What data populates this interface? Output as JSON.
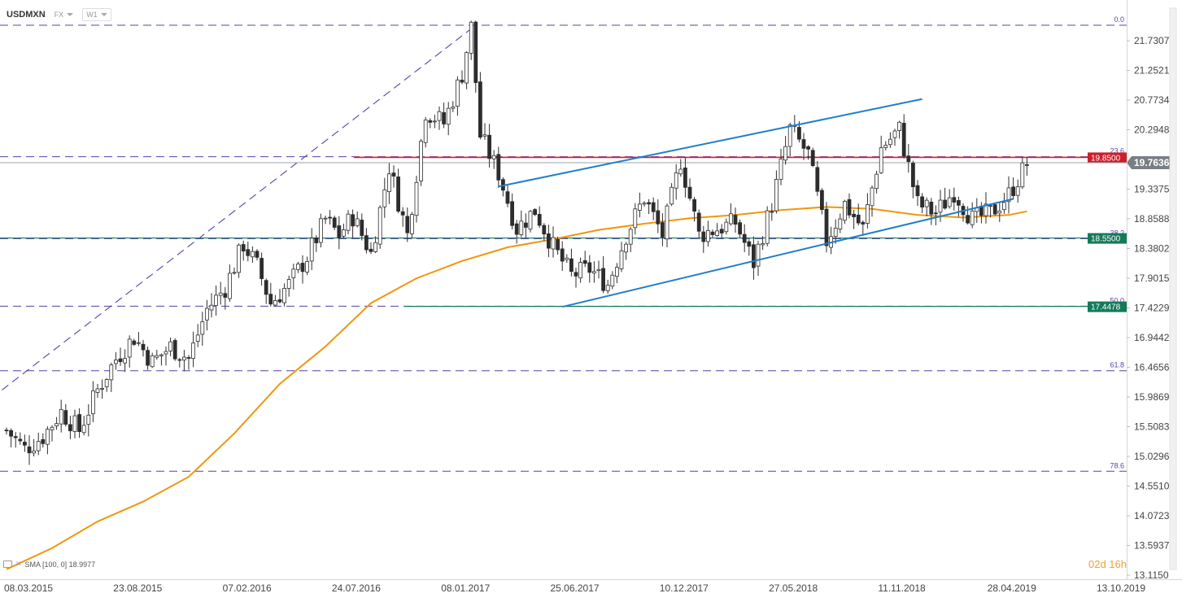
{
  "header": {
    "symbol": "USDMXN",
    "market": "FX",
    "interval": "W1"
  },
  "indicator": {
    "label": "SMA [100, 0] 18.9977"
  },
  "countdown": "02d 16h",
  "colors": {
    "up": "#ffffff",
    "down": "#2d2d2d",
    "sma": "#f0960c",
    "fib": "#5b3fa8",
    "trend": "#1f7ec9",
    "resistance": "#cc1f2b",
    "support": "#15795a",
    "price_tag": "#7a7f85"
  },
  "chart_data": {
    "type": "candlestick",
    "y_ticks": [
      "21.7307",
      "21.2521",
      "20.7734",
      "20.2948",
      "19.3375",
      "18.8588",
      "18.3802",
      "17.9015",
      "17.4229",
      "16.9442",
      "16.4656",
      "15.9869",
      "15.5083",
      "15.0296",
      "14.5510",
      "14.0723",
      "13.5937",
      "13.1150"
    ],
    "x_ticks": [
      "08.03.2015",
      "23.08.2015",
      "07.02.2016",
      "24.07.2016",
      "08.01.2017",
      "25.06.2017",
      "10.12.2017",
      "27.05.2018",
      "11.11.2018",
      "28.04.2019",
      "13.10.2019"
    ],
    "fib_levels": [
      {
        "label": "0.0",
        "value": 21.98
      },
      {
        "label": "23.6",
        "value": 19.86
      },
      {
        "label": "38.2",
        "value": 18.54
      },
      {
        "label": "50.0",
        "value": 17.45
      },
      {
        "label": "61.8",
        "value": 16.41
      },
      {
        "label": "78.6",
        "value": 14.79
      }
    ],
    "horizontal_levels": [
      {
        "name": "resistance",
        "label": "19.8500",
        "value": 19.85
      },
      {
        "name": "support",
        "label": "18.5500",
        "value": 18.55
      },
      {
        "name": "support2",
        "label": "17.4478",
        "value": 17.4478
      }
    ],
    "current_price": {
      "label": "19.7636",
      "value": 19.7636
    },
    "ylim": [
      13.115,
      22.0
    ],
    "weeks_span": [
      0,
      240
    ],
    "waypoints_close": [
      [
        0,
        15.45
      ],
      [
        4,
        15.15
      ],
      [
        8,
        15.35
      ],
      [
        12,
        15.75
      ],
      [
        16,
        15.45
      ],
      [
        20,
        16.1
      ],
      [
        24,
        16.6
      ],
      [
        28,
        16.95
      ],
      [
        32,
        16.55
      ],
      [
        36,
        16.8
      ],
      [
        40,
        16.6
      ],
      [
        44,
        17.4
      ],
      [
        48,
        17.75
      ],
      [
        52,
        18.45
      ],
      [
        55,
        18.1
      ],
      [
        58,
        17.5
      ],
      [
        62,
        17.8
      ],
      [
        66,
        18.25
      ],
      [
        70,
        18.85
      ],
      [
        73,
        18.6
      ],
      [
        76,
        18.9
      ],
      [
        80,
        18.3
      ],
      [
        84,
        19.7
      ],
      [
        88,
        18.6
      ],
      [
        92,
        20.6
      ],
      [
        96,
        20.4
      ],
      [
        100,
        21.2
      ],
      [
        102,
        21.95
      ],
      [
        104,
        20.2
      ],
      [
        108,
        19.6
      ],
      [
        112,
        18.7
      ],
      [
        116,
        19.0
      ],
      [
        120,
        18.4
      ],
      [
        124,
        17.95
      ],
      [
        128,
        18.05
      ],
      [
        132,
        17.8
      ],
      [
        136,
        18.6
      ],
      [
        140,
        19.2
      ],
      [
        144,
        18.6
      ],
      [
        148,
        19.8
      ],
      [
        152,
        18.6
      ],
      [
        156,
        18.7
      ],
      [
        160,
        18.8
      ],
      [
        164,
        18.15
      ],
      [
        168,
        19.1
      ],
      [
        172,
        20.3
      ],
      [
        176,
        19.9
      ],
      [
        180,
        18.5
      ],
      [
        184,
        19.1
      ],
      [
        188,
        18.7
      ],
      [
        192,
        20.0
      ],
      [
        196,
        20.3
      ],
      [
        200,
        19.1
      ],
      [
        204,
        18.95
      ],
      [
        208,
        19.3
      ],
      [
        212,
        18.85
      ],
      [
        216,
        18.95
      ],
      [
        220,
        19.25
      ],
      [
        224,
        19.75
      ]
    ],
    "sma_points": [
      [
        0,
        13.21
      ],
      [
        10,
        13.55
      ],
      [
        20,
        13.98
      ],
      [
        30,
        14.3
      ],
      [
        40,
        14.7
      ],
      [
        50,
        15.4
      ],
      [
        60,
        16.2
      ],
      [
        70,
        16.8
      ],
      [
        80,
        17.5
      ],
      [
        90,
        17.9
      ],
      [
        100,
        18.18
      ],
      [
        110,
        18.4
      ],
      [
        120,
        18.53
      ],
      [
        130,
        18.68
      ],
      [
        140,
        18.78
      ],
      [
        150,
        18.87
      ],
      [
        160,
        18.92
      ],
      [
        170,
        19.0
      ],
      [
        180,
        19.05
      ],
      [
        190,
        19.02
      ],
      [
        200,
        18.92
      ],
      [
        210,
        18.88
      ],
      [
        220,
        18.92
      ],
      [
        224,
        18.98
      ]
    ]
  }
}
